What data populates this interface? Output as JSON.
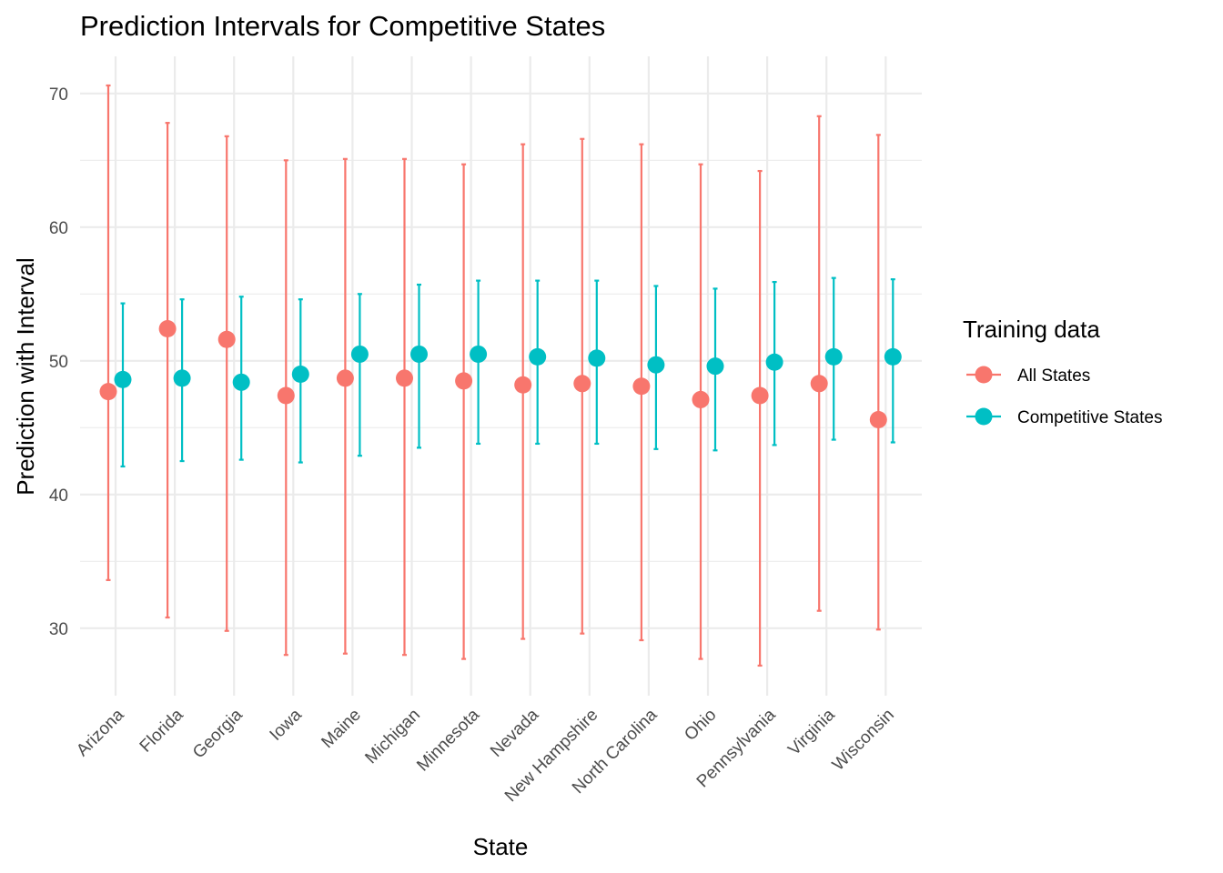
{
  "chart_data": {
    "type": "scatter",
    "title": "Prediction Intervals for Competitive States",
    "xlabel": "State",
    "ylabel": "Prediction with Interval",
    "categories": [
      "Arizona",
      "Florida",
      "Georgia",
      "Iowa",
      "Maine",
      "Michigan",
      "Minnesota",
      "Nevada",
      "New Hampshire",
      "North Carolina",
      "Ohio",
      "Pennsylvania",
      "Virginia",
      "Wisconsin"
    ],
    "ylim": [
      25.3,
      72.7
    ],
    "yticks": [
      30,
      40,
      50,
      60,
      70
    ],
    "ytick_labels": [
      "30",
      "40",
      "50",
      "60",
      "70"
    ],
    "grid": true,
    "legend": {
      "title": "Training data",
      "position": "right"
    },
    "series": [
      {
        "name": "All States",
        "color": "#F8766D",
        "fit": [
          47.7,
          52.4,
          51.6,
          47.4,
          48.7,
          48.7,
          48.5,
          48.2,
          48.3,
          48.1,
          47.1,
          47.4,
          48.3,
          45.6
        ],
        "lower": [
          33.6,
          30.8,
          29.8,
          28.0,
          28.1,
          28.0,
          27.7,
          29.2,
          29.6,
          29.1,
          27.7,
          27.2,
          31.3,
          29.9
        ],
        "upper": [
          70.6,
          67.8,
          66.8,
          65.0,
          65.1,
          65.1,
          64.7,
          66.2,
          66.6,
          66.2,
          64.7,
          64.2,
          68.3,
          66.9
        ]
      },
      {
        "name": "Competitive States",
        "color": "#00BFC4",
        "fit": [
          48.6,
          48.7,
          48.4,
          49.0,
          50.5,
          50.5,
          50.5,
          50.3,
          50.2,
          49.7,
          49.6,
          49.9,
          50.3,
          50.3
        ],
        "lower": [
          42.1,
          42.5,
          42.6,
          42.4,
          42.9,
          43.5,
          43.8,
          43.8,
          43.8,
          43.4,
          43.3,
          43.7,
          44.1,
          43.9
        ],
        "upper": [
          54.3,
          54.6,
          54.8,
          54.6,
          55.0,
          55.7,
          56.0,
          56.0,
          56.0,
          55.6,
          55.4,
          55.9,
          56.2,
          56.1
        ]
      }
    ]
  }
}
